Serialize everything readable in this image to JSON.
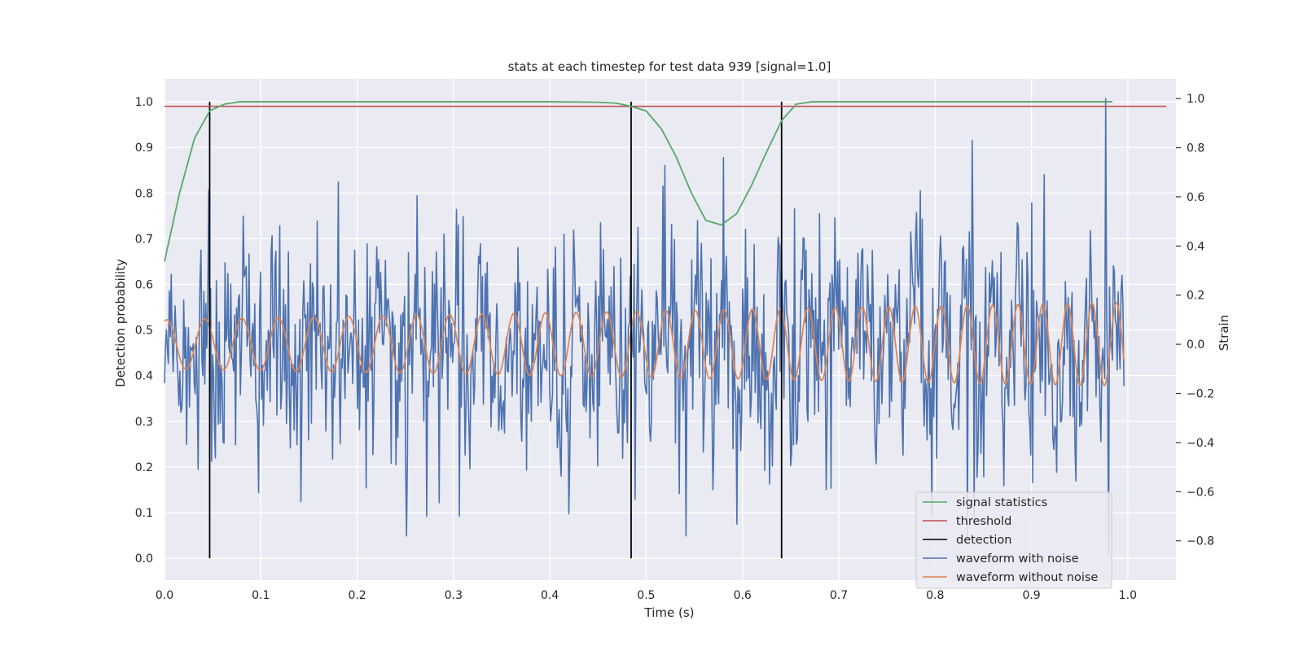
{
  "chart_data": {
    "type": "line",
    "title": "stats at each timestep for test data 939 [signal=1.0]",
    "xlabel": "Time (s)",
    "ylabel_left": "Detection probability",
    "ylabel_right": "Strain",
    "xlim": [
      0.0,
      1.05
    ],
    "ylim_left": [
      -0.048,
      1.05
    ],
    "ylim_right": [
      -0.96,
      1.08
    ],
    "x_ticks": [
      "0.0",
      "0.1",
      "0.2",
      "0.3",
      "0.4",
      "0.5",
      "0.6",
      "0.7",
      "0.8",
      "0.9",
      "1.0"
    ],
    "y_left_ticks": [
      "0.0",
      "0.1",
      "0.2",
      "0.3",
      "0.4",
      "0.5",
      "0.6",
      "0.7",
      "0.8",
      "0.9",
      "1.0"
    ],
    "y_right_ticks": [
      "−0.8",
      "−0.6",
      "−0.4",
      "−0.2",
      "0.0",
      "0.2",
      "0.4",
      "0.6",
      "0.8",
      "1.0"
    ],
    "grid": true,
    "legend_position": "lower-right",
    "colors": {
      "signal_statistics": "#55a868",
      "threshold": "#c44e52",
      "detection": "#000000",
      "waveform_with_noise": "#4c72b0",
      "waveform_without_noise": "#dd8452",
      "plot_background": "#eaeaf2",
      "grid": "#ffffff"
    },
    "series": [
      {
        "name": "signal statistics",
        "axis": "left",
        "x": [
          0.0,
          0.0156,
          0.0312,
          0.0469,
          0.0625,
          0.078,
          0.1,
          0.2,
          0.3,
          0.4,
          0.45,
          0.469,
          0.484,
          0.5,
          0.516,
          0.531,
          0.547,
          0.562,
          0.578,
          0.594,
          0.609,
          0.625,
          0.641,
          0.656,
          0.672,
          0.7,
          0.8,
          0.9,
          0.984
        ],
        "y": [
          0.65,
          0.8,
          0.92,
          0.98,
          0.995,
          1.0,
          1.0,
          1.0,
          1.0,
          1.0,
          0.999,
          0.997,
          0.99,
          0.98,
          0.94,
          0.88,
          0.8,
          0.74,
          0.73,
          0.755,
          0.815,
          0.89,
          0.96,
          0.995,
          1.0,
          1.0,
          1.0,
          1.0,
          1.0
        ]
      },
      {
        "name": "threshold",
        "axis": "left",
        "x": [
          0.0,
          1.04
        ],
        "y": [
          0.99,
          0.99
        ]
      },
      {
        "name": "detection",
        "axis": "left",
        "x": [
          0.0469,
          0.4844,
          0.6406
        ],
        "y_range": [
          0.0,
          1.0
        ]
      },
      {
        "name": "waveform with noise",
        "axis": "right",
        "noise_std": 0.22,
        "x_range": [
          0.0,
          0.996
        ],
        "samples": 1000,
        "extremes": [
          {
            "x": 0.977,
            "y": 1.0
          },
          {
            "x": 0.838,
            "y": 0.83
          },
          {
            "x": 0.58,
            "y": 0.76
          },
          {
            "x": 0.18,
            "y": 0.66
          },
          {
            "x": 0.306,
            "y": -0.7
          },
          {
            "x": 0.272,
            "y": -0.7
          },
          {
            "x": 0.42,
            "y": -0.69
          },
          {
            "x": 0.84,
            "y": -0.7
          },
          {
            "x": 0.98,
            "y": -0.86
          }
        ]
      },
      {
        "name": "waveform without noise",
        "axis": "right",
        "x_range": [
          0.0,
          0.996
        ],
        "freq_start_hz": 25,
        "freq_end_hz": 40,
        "amp_start": 0.1,
        "amp_end": 0.17
      }
    ],
    "legend": [
      "signal statistics",
      "threshold",
      "detection",
      "waveform with noise",
      "waveform without noise"
    ]
  }
}
